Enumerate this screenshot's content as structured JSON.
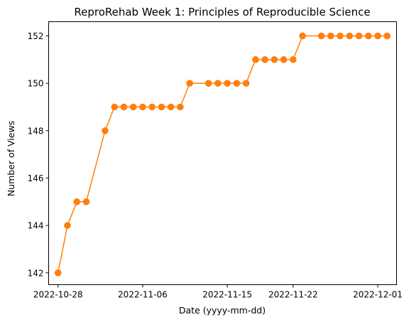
{
  "chart_data": {
    "type": "line",
    "title": "ReproRehab Week 1: Principles of Reproducible Science",
    "xlabel": "Date (yyyy-mm-dd)",
    "ylabel": "Number of Views",
    "x_ticks": [
      "2022-10-28",
      "2022-11-06",
      "2022-11-15",
      "2022-11-22",
      "2022-12-01"
    ],
    "y_ticks": [
      142,
      144,
      146,
      148,
      150,
      152
    ],
    "xlim": [
      "2022-10-27",
      "2022-12-03"
    ],
    "ylim": [
      141.5,
      152.6
    ],
    "grid": false,
    "legend": "none",
    "series": [
      {
        "color": "#ff7f0e",
        "marker": "circle",
        "points": [
          {
            "x": "2022-10-28",
            "y": 142
          },
          {
            "x": "2022-10-29",
            "y": 144
          },
          {
            "x": "2022-10-30",
            "y": 145
          },
          {
            "x": "2022-10-31",
            "y": 145
          },
          {
            "x": "2022-11-02",
            "y": 148
          },
          {
            "x": "2022-11-03",
            "y": 149
          },
          {
            "x": "2022-11-04",
            "y": 149
          },
          {
            "x": "2022-11-05",
            "y": 149
          },
          {
            "x": "2022-11-06",
            "y": 149
          },
          {
            "x": "2022-11-07",
            "y": 149
          },
          {
            "x": "2022-11-08",
            "y": 149
          },
          {
            "x": "2022-11-09",
            "y": 149
          },
          {
            "x": "2022-11-10",
            "y": 149
          },
          {
            "x": "2022-11-11",
            "y": 150
          },
          {
            "x": "2022-11-13",
            "y": 150
          },
          {
            "x": "2022-11-14",
            "y": 150
          },
          {
            "x": "2022-11-15",
            "y": 150
          },
          {
            "x": "2022-11-16",
            "y": 150
          },
          {
            "x": "2022-11-17",
            "y": 150
          },
          {
            "x": "2022-11-18",
            "y": 151
          },
          {
            "x": "2022-11-19",
            "y": 151
          },
          {
            "x": "2022-11-20",
            "y": 151
          },
          {
            "x": "2022-11-21",
            "y": 151
          },
          {
            "x": "2022-11-22",
            "y": 151
          },
          {
            "x": "2022-11-23",
            "y": 152
          },
          {
            "x": "2022-11-25",
            "y": 152
          },
          {
            "x": "2022-11-26",
            "y": 152
          },
          {
            "x": "2022-11-27",
            "y": 152
          },
          {
            "x": "2022-11-28",
            "y": 152
          },
          {
            "x": "2022-11-29",
            "y": 152
          },
          {
            "x": "2022-11-30",
            "y": 152
          },
          {
            "x": "2022-12-01",
            "y": 152
          },
          {
            "x": "2022-12-02",
            "y": 152
          }
        ]
      }
    ]
  }
}
